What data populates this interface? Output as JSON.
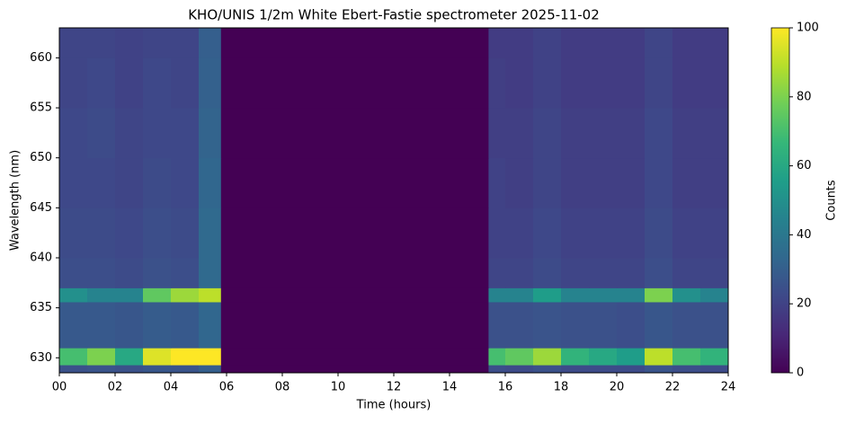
{
  "chart_data": {
    "type": "heatmap",
    "title": "KHO/UNIS 1/2m White Ebert-Fastie spectrometer 2025-11-02",
    "x_label": "Time (hours)",
    "y_label": "Wavelength (nm)",
    "colorbar_label": "Counts",
    "cmap": "viridis",
    "clim": [
      0,
      100
    ],
    "cticks": [
      0,
      20,
      40,
      60,
      80,
      100
    ],
    "xlim": [
      0,
      24
    ],
    "ylim": [
      628.5,
      663
    ],
    "xticks": [
      {
        "value": 0,
        "label": "00"
      },
      {
        "value": 2,
        "label": "02"
      },
      {
        "value": 4,
        "label": "04"
      },
      {
        "value": 6,
        "label": "06"
      },
      {
        "value": 8,
        "label": "08"
      },
      {
        "value": 10,
        "label": "10"
      },
      {
        "value": 12,
        "label": "12"
      },
      {
        "value": 14,
        "label": "14"
      },
      {
        "value": 16,
        "label": "16"
      },
      {
        "value": 18,
        "label": "18"
      },
      {
        "value": 20,
        "label": "20"
      },
      {
        "value": 22,
        "label": "22"
      },
      {
        "value": 24,
        "label": "24"
      }
    ],
    "yticks": [
      630,
      635,
      640,
      645,
      650,
      655,
      660
    ],
    "xedges": [
      0,
      1,
      2,
      3,
      4,
      5,
      5.8,
      15.4,
      16,
      17,
      18,
      19,
      20,
      21,
      22,
      23,
      24
    ],
    "yedges": [
      628.5,
      629.3,
      631,
      635.6,
      637,
      640,
      645,
      650,
      655,
      660,
      663
    ],
    "values": [
      [
        25,
        26,
        25,
        27,
        26,
        30,
        0,
        24,
        23,
        25,
        23,
        23,
        23,
        26,
        24,
        23
      ],
      [
        70,
        80,
        60,
        95,
        100,
        100,
        0,
        70,
        75,
        85,
        65,
        60,
        55,
        90,
        70,
        65
      ],
      [
        28,
        28,
        27,
        29,
        28,
        33,
        0,
        25,
        25,
        26,
        25,
        25,
        24,
        27,
        25,
        25
      ],
      [
        50,
        45,
        45,
        75,
        85,
        90,
        0,
        45,
        45,
        55,
        45,
        45,
        45,
        80,
        50,
        45
      ],
      [
        24,
        24,
        23,
        25,
        24,
        34,
        0,
        21,
        21,
        23,
        21,
        21,
        21,
        24,
        21,
        21
      ],
      [
        23,
        23,
        22,
        24,
        23,
        34,
        0,
        20,
        20,
        22,
        20,
        20,
        20,
        23,
        20,
        20
      ],
      [
        22,
        22,
        21,
        23,
        22,
        33,
        0,
        20,
        19,
        21,
        19,
        19,
        19,
        22,
        19,
        19
      ],
      [
        22,
        23,
        21,
        22,
        22,
        32,
        0,
        19,
        19,
        21,
        19,
        19,
        19,
        22,
        19,
        19
      ],
      [
        21,
        22,
        20,
        22,
        21,
        31,
        0,
        19,
        18,
        20,
        18,
        18,
        18,
        21,
        18,
        18
      ],
      [
        21,
        21,
        20,
        21,
        21,
        30,
        0,
        18,
        18,
        20,
        18,
        18,
        18,
        21,
        18,
        18
      ]
    ]
  }
}
